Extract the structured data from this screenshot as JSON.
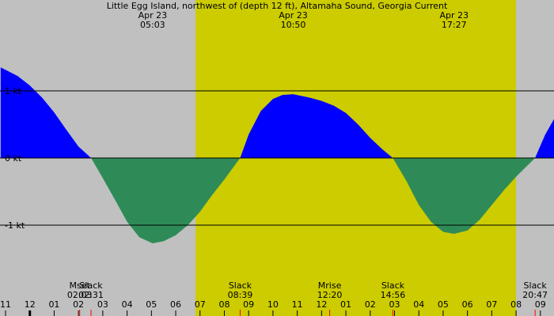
{
  "chart_data": {
    "type": "area",
    "title": "Little Egg Island, northwest of (depth 12 ft), Altamaha Sound, Georgia Current",
    "x": [
      -1.2,
      -0.5,
      0,
      0.5,
      1.0,
      1.5,
      2.0,
      2.52,
      3.0,
      3.5,
      4.0,
      4.5,
      5.05,
      5.5,
      6.0,
      6.5,
      7.0,
      7.5,
      8.0,
      8.65,
      9.0,
      9.5,
      10.0,
      10.4,
      10.83,
      11.5,
      12.0,
      12.5,
      13.0,
      13.5,
      14.0,
      14.5,
      14.93,
      15.5,
      16.0,
      16.5,
      17.0,
      17.45,
      18.0,
      18.5,
      19.0,
      19.5,
      20.0,
      20.5,
      20.78,
      21.2,
      21.56
    ],
    "values": [
      1.35,
      1.22,
      1.08,
      0.9,
      0.68,
      0.42,
      0.17,
      0,
      -0.3,
      -0.62,
      -0.95,
      -1.18,
      -1.27,
      -1.24,
      -1.15,
      -1.0,
      -0.8,
      -0.55,
      -0.32,
      0,
      0.35,
      0.7,
      0.88,
      0.94,
      0.95,
      0.9,
      0.85,
      0.78,
      0.67,
      0.5,
      0.3,
      0.13,
      0,
      -0.35,
      -0.7,
      -0.95,
      -1.1,
      -1.13,
      -1.08,
      -0.92,
      -0.7,
      -0.48,
      -0.28,
      -0.1,
      0,
      0.35,
      0.58
    ],
    "colors": {
      "flood": "#0000ff",
      "ebb": "#2e8b57"
    },
    "xlim": [
      -1.228,
      21.56
    ],
    "ylim": [
      -2.353,
      2.353
    ],
    "yticks": [
      {
        "value": 1,
        "label": "1 kt"
      },
      {
        "value": 0,
        "label": "0 kt"
      },
      {
        "value": -1,
        "label": "-1 kt"
      }
    ],
    "xticks": [
      {
        "value": -1,
        "label": "11"
      },
      {
        "value": 0,
        "label": "12"
      },
      {
        "value": 1,
        "label": "01"
      },
      {
        "value": 2,
        "label": "02"
      },
      {
        "value": 3,
        "label": "03"
      },
      {
        "value": 4,
        "label": "04"
      },
      {
        "value": 5,
        "label": "05"
      },
      {
        "value": 6,
        "label": "06"
      },
      {
        "value": 7,
        "label": "07"
      },
      {
        "value": 8,
        "label": "08"
      },
      {
        "value": 9,
        "label": "09"
      },
      {
        "value": 10,
        "label": "10"
      },
      {
        "value": 11,
        "label": "11"
      },
      {
        "value": 12,
        "label": "12"
      },
      {
        "value": 13,
        "label": "01"
      },
      {
        "value": 14,
        "label": "02"
      },
      {
        "value": 15,
        "label": "03"
      },
      {
        "value": 16,
        "label": "04"
      },
      {
        "value": 17,
        "label": "05"
      },
      {
        "value": 18,
        "label": "06"
      },
      {
        "value": 19,
        "label": "07"
      },
      {
        "value": 20,
        "label": "08"
      },
      {
        "value": 21,
        "label": "09"
      }
    ],
    "extremes": [
      {
        "date": "Apr 23",
        "time": "05:03"
      },
      {
        "date": "Apr 23",
        "time": "10:50"
      },
      {
        "date": "Apr 23",
        "time": "17:27"
      }
    ],
    "events": [
      {
        "label": "Mset",
        "time": "02:03"
      },
      {
        "label": "Slack",
        "time": "02:31"
      },
      {
        "label": "Slack",
        "time": "08:39"
      },
      {
        "label": "Mrise",
        "time": "12:20"
      },
      {
        "label": "Slack",
        "time": "14:56"
      },
      {
        "label": "Slack",
        "time": "20:47"
      }
    ]
  }
}
